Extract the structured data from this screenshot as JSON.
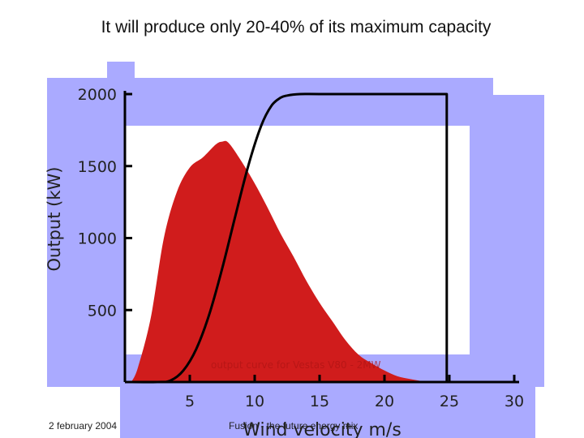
{
  "slide": {
    "title": "It will produce only 20-40% of its maximum capacity",
    "footer_date": "2 february 2004",
    "footer_text": "Fusion - the future energy mix"
  },
  "colors": {
    "panel": "#aaaaff",
    "inner_panel": "#ffffff",
    "distribution_fill": "#d01c1c",
    "curve": "#000000"
  },
  "chart_data": {
    "type": "area",
    "ylabel": "Output (kW)",
    "xlabel": "Wind velocity m/s",
    "annotation": "output curve for Vestas V80 - 2MW",
    "xlim": [
      0,
      30
    ],
    "ylim": [
      0,
      2000
    ],
    "x_ticks": [
      5,
      10,
      15,
      20,
      25,
      30
    ],
    "y_ticks": [
      500,
      1000,
      1500,
      2000
    ],
    "grid": false,
    "series": [
      {
        "kind": "area",
        "x": [
          0.5,
          1,
          2,
          3,
          4,
          5,
          6,
          7,
          7.5,
          8,
          9,
          10,
          11,
          12,
          13,
          14,
          15,
          16,
          17,
          18,
          19,
          20,
          21,
          22,
          23,
          24
        ],
        "values": [
          0,
          100,
          450,
          1000,
          1320,
          1490,
          1560,
          1650,
          1670,
          1660,
          1530,
          1380,
          1210,
          1030,
          870,
          700,
          550,
          420,
          290,
          190,
          130,
          80,
          40,
          20,
          5,
          0
        ]
      },
      {
        "kind": "line",
        "x": [
          0,
          2.5,
          3.5,
          4.5,
          5.5,
          6.5,
          7.5,
          8.5,
          9.5,
          10.5,
          11.3,
          12,
          12.5,
          13.5,
          15,
          20,
          24.8,
          24.8
        ],
        "values": [
          0,
          0,
          10,
          80,
          230,
          470,
          790,
          1150,
          1500,
          1780,
          1920,
          1975,
          1990,
          2000,
          2000,
          2000,
          2000,
          0
        ]
      }
    ]
  }
}
